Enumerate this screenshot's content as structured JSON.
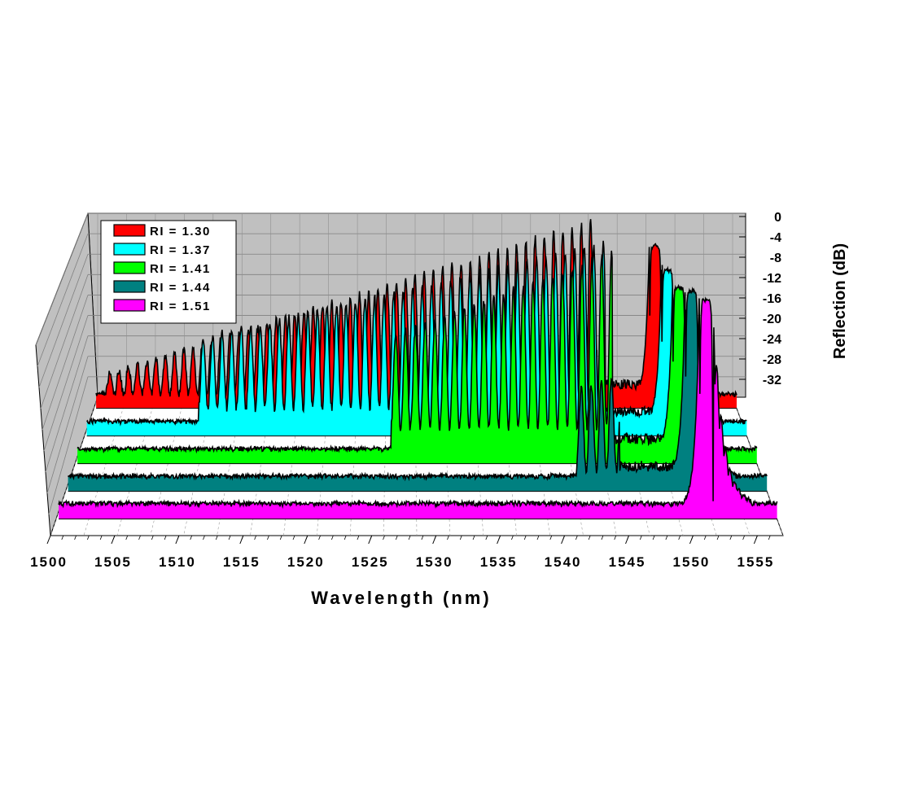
{
  "chart_data": {
    "type": "area",
    "subtype": "3d-waterfall",
    "title": "",
    "xlabel": "Wavelength (nm)",
    "ylabel": "",
    "zlabel": "Reflection (dB)",
    "x_ticks": [
      "1500",
      "1505",
      "1510",
      "1515",
      "1520",
      "1525",
      "1530",
      "1535",
      "1540",
      "1545",
      "1550",
      "1555"
    ],
    "z_ticks": [
      "0",
      "-4",
      "-8",
      "-12",
      "-16",
      "-20",
      "-24",
      "-28",
      "-32"
    ],
    "xlim": [
      1500,
      1557
    ],
    "zlim": [
      -34,
      0
    ],
    "grid": true,
    "legend_position": "top-left",
    "series": [
      {
        "name": "RI = 1.30",
        "color": "#ff0000",
        "comb_start_nm": 1501.0,
        "comb_end_nm": 1544.6,
        "comb_period_nm": 0.82,
        "peak_db_at_start": -29,
        "peak_db_at_end": -6,
        "trough_db": -32,
        "background_db": -32,
        "bragg_peak_nm": 1549.8,
        "bragg_peak_db": -10
      },
      {
        "name": "RI = 1.37",
        "color": "#00ffff",
        "comb_start_nm": 1509.8,
        "comb_end_nm": 1544.8,
        "comb_period_nm": 0.82,
        "peak_db_at_start": -20,
        "peak_db_at_end": -6,
        "trough_db": -30,
        "background_db": -32,
        "bragg_peak_nm": 1550.2,
        "bragg_peak_db": -10
      },
      {
        "name": "RI = 1.41",
        "color": "#00ff00",
        "comb_start_nm": 1526.4,
        "comb_end_nm": 1544.9,
        "comb_period_nm": 0.82,
        "peak_db_at_start": -16,
        "peak_db_at_end": -4,
        "trough_db": -29,
        "background_db": -32,
        "bragg_peak_nm": 1550.5,
        "bragg_peak_db": -9
      },
      {
        "name": "RI = 1.44",
        "color": "#008080",
        "comb_start_nm": 1541.5,
        "comb_end_nm": 1545.0,
        "comb_period_nm": 0.82,
        "peak_db_at_start": -20,
        "peak_db_at_end": -18,
        "trough_db": -31,
        "background_db": -32,
        "bragg_peak_nm": 1550.9,
        "bragg_peak_db": -6
      },
      {
        "name": "RI = 1.51",
        "color": "#ff00ff",
        "comb_start_nm": null,
        "comb_end_nm": null,
        "comb_period_nm": null,
        "peak_db_at_start": null,
        "peak_db_at_end": null,
        "trough_db": null,
        "background_db": -32,
        "bragg_peak_nm": 1551.4,
        "bragg_peak_db": -4
      }
    ]
  }
}
